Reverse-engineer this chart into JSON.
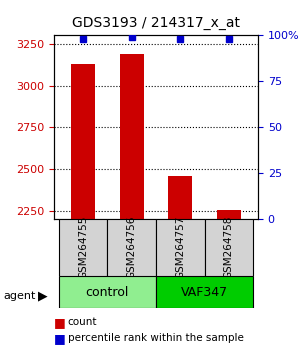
{
  "title": "GDS3193 / 214317_x_at",
  "samples": [
    "GSM264755",
    "GSM264756",
    "GSM264757",
    "GSM264758"
  ],
  "counts": [
    3130,
    3190,
    2460,
    2255
  ],
  "percentile_ranks": [
    98,
    99,
    98,
    98
  ],
  "ylim_left": [
    2200,
    3300
  ],
  "ylim_right": [
    0,
    100
  ],
  "yticks_left": [
    2250,
    2500,
    2750,
    3000,
    3250
  ],
  "yticks_right": [
    0,
    25,
    50,
    75,
    100
  ],
  "ytick_labels_right": [
    "0",
    "25",
    "50",
    "75",
    "100%"
  ],
  "bar_color": "#cc0000",
  "dot_color": "#0000cc",
  "groups": [
    {
      "label": "control",
      "indices": [
        0,
        1
      ],
      "color": "#90ee90"
    },
    {
      "label": "VAF347",
      "indices": [
        2,
        3
      ],
      "color": "#00cc00"
    }
  ],
  "group_row_label": "agent",
  "legend_count_label": "count",
  "legend_pct_label": "percentile rank within the sample",
  "background_color": "#ffffff",
  "plot_bg_color": "#ffffff",
  "grid_color": "#000000",
  "tick_color_left": "#cc0000",
  "tick_color_right": "#0000cc"
}
